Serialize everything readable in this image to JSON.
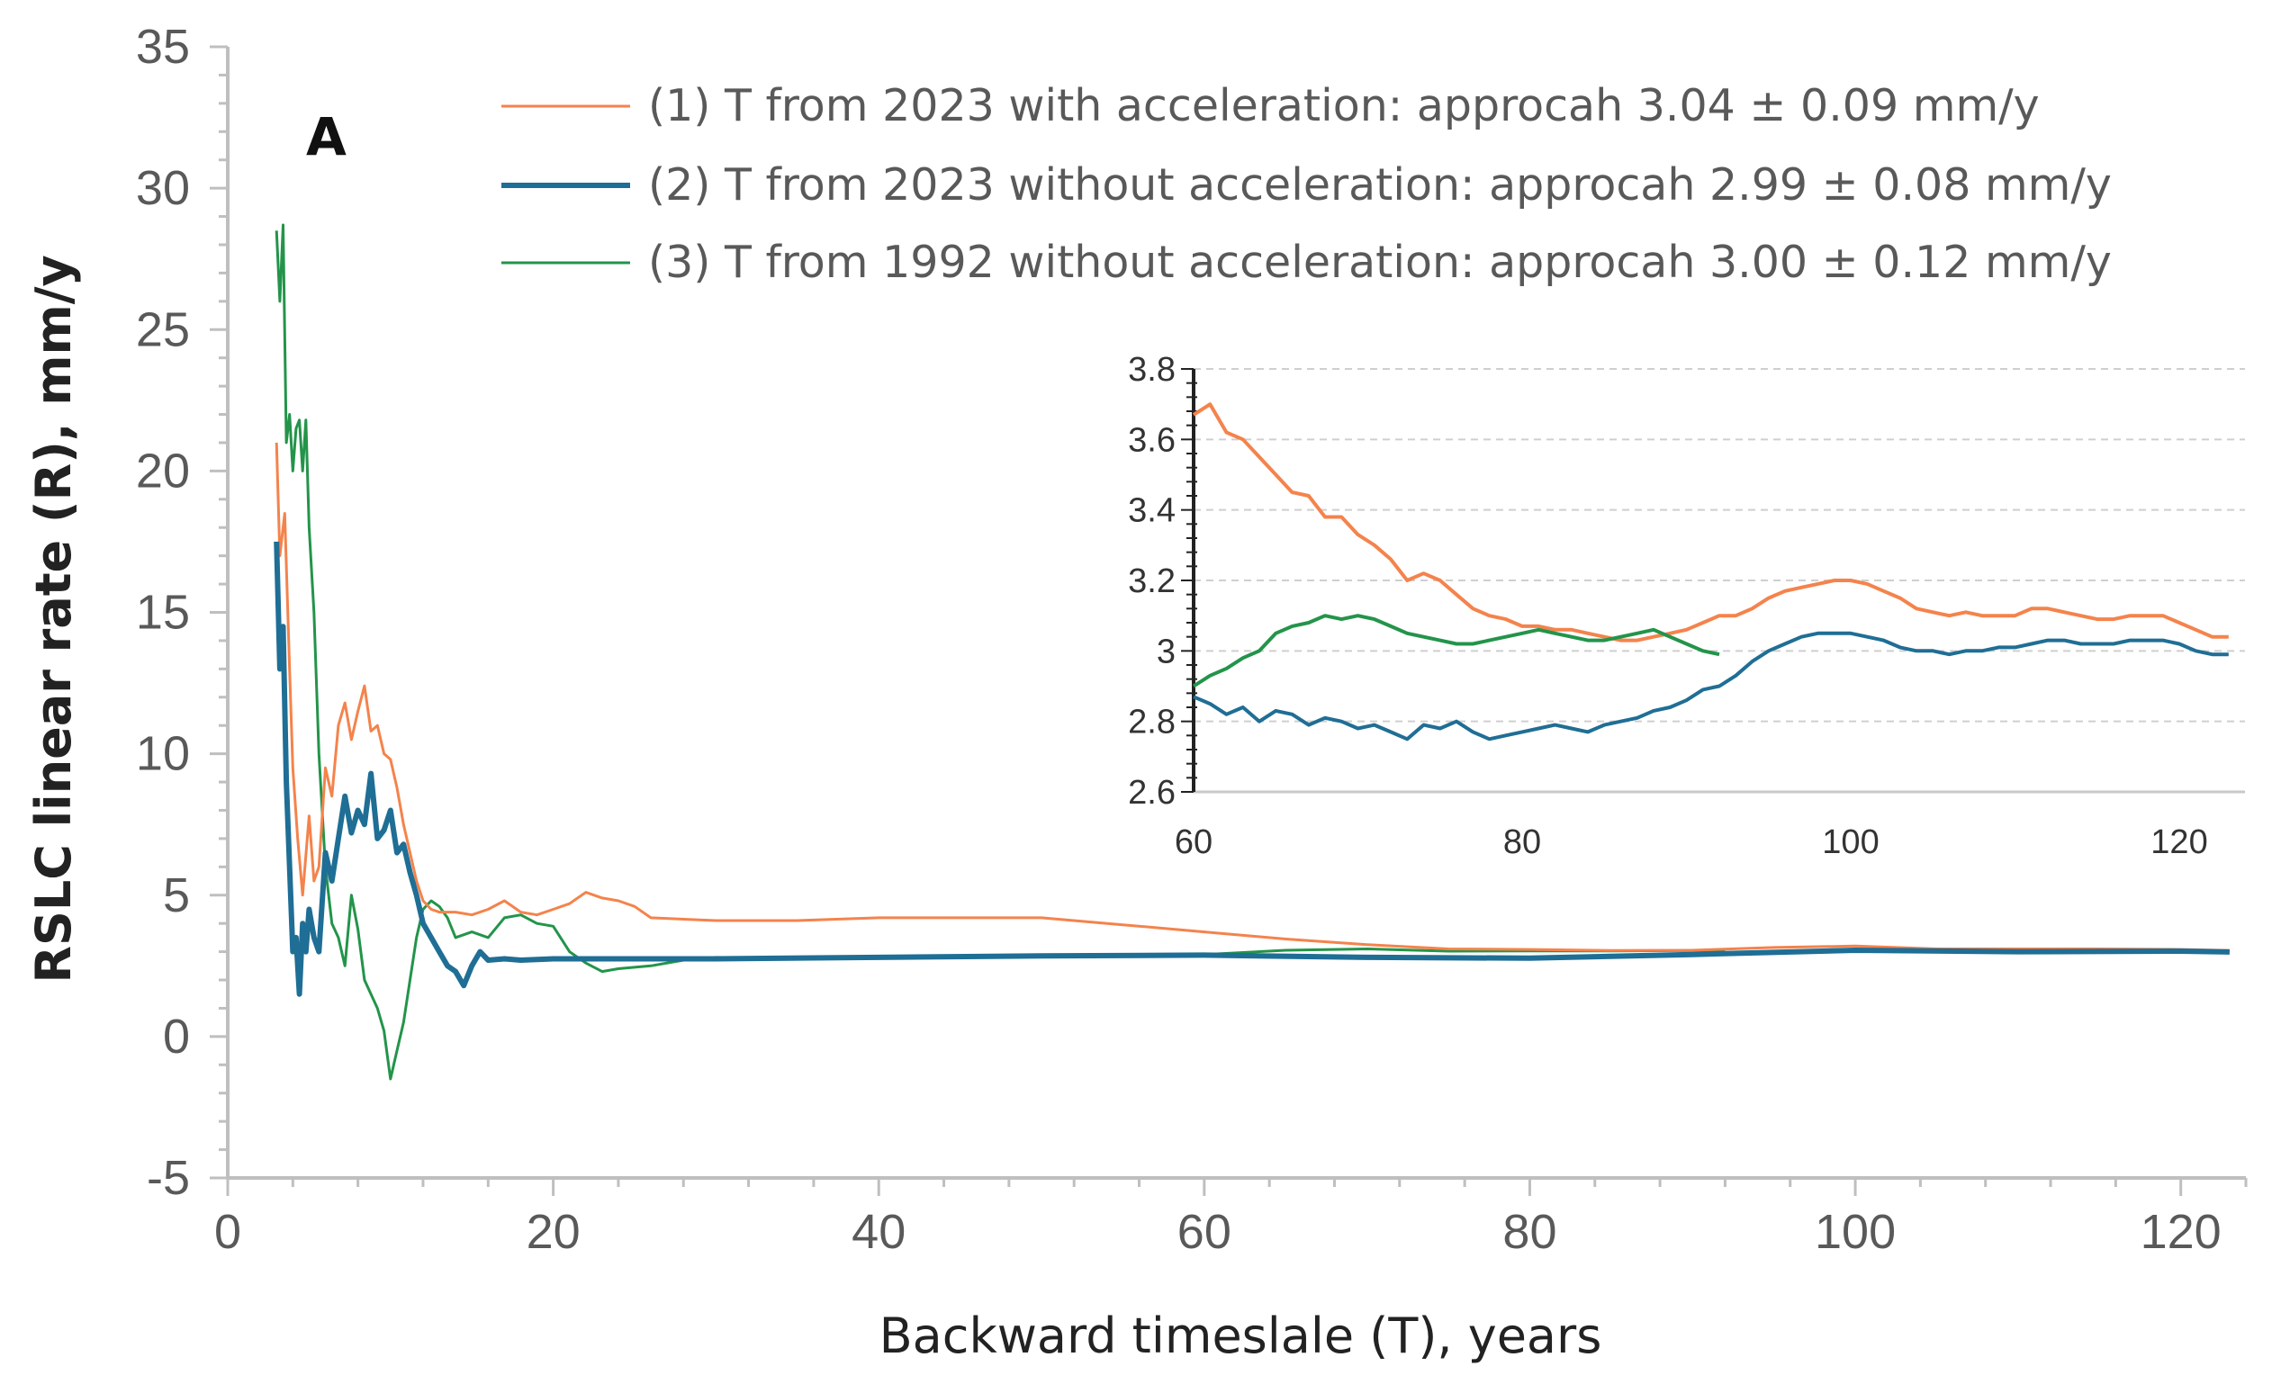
{
  "chart_data": [
    {
      "type": "line",
      "panel_label": "A",
      "xlabel": "Backward timeslale (T), years",
      "ylabel": "RSLC linear rate (R), mm/y",
      "xlim": [
        0,
        124
      ],
      "ylim": [
        -5,
        35
      ],
      "xticks": [
        0,
        20,
        40,
        60,
        80,
        100,
        120
      ],
      "yticks": [
        -5,
        0,
        5,
        10,
        15,
        20,
        25,
        30,
        35
      ],
      "grid": false,
      "legend_position": "top-right",
      "series": [
        {
          "name": "(1) T from 2023 with acceleration: approcah 3.04 ± 0.09 mm/y",
          "color": "#F4834C",
          "x": [
            3.0,
            3.2,
            3.5,
            3.8,
            4.0,
            4.3,
            4.6,
            5.0,
            5.3,
            5.6,
            6.0,
            6.4,
            6.8,
            7.2,
            7.6,
            8.0,
            8.4,
            8.8,
            9.2,
            9.6,
            10.0,
            10.4,
            10.8,
            11.2,
            11.6,
            12.0,
            12.5,
            13.0,
            13.5,
            14.0,
            15.0,
            16.0,
            17.0,
            18.0,
            19.0,
            20.0,
            21.0,
            22.0,
            23.0,
            24.0,
            25.0,
            26.0,
            30.0,
            35.0,
            40.0,
            45.0,
            50.0,
            55.0,
            60.0,
            65.0,
            70.0,
            75.0,
            80.0,
            85.0,
            90.0,
            95.0,
            100.0,
            105.0,
            110.0,
            115.0,
            120.0,
            123.0
          ],
          "values": [
            21.0,
            17.0,
            18.5,
            13.0,
            9.5,
            7.0,
            5.0,
            7.8,
            5.5,
            6.0,
            9.5,
            8.5,
            11.0,
            11.8,
            10.5,
            11.5,
            12.4,
            10.8,
            11.0,
            10.0,
            9.8,
            8.8,
            7.5,
            6.5,
            5.5,
            4.8,
            4.5,
            4.4,
            4.4,
            4.4,
            4.3,
            4.5,
            4.8,
            4.4,
            4.3,
            4.5,
            4.7,
            5.1,
            4.9,
            4.8,
            4.6,
            4.2,
            4.1,
            4.1,
            4.2,
            4.2,
            4.2,
            3.95,
            3.7,
            3.45,
            3.25,
            3.1,
            3.08,
            3.04,
            3.05,
            3.15,
            3.2,
            3.1,
            3.1,
            3.1,
            3.08,
            3.04
          ]
        },
        {
          "name": "(2) T from 2023 without acceleration: approcah 2.99 ± 0.08 mm/y",
          "color": "#1F6E95",
          "x": [
            3.0,
            3.2,
            3.4,
            3.6,
            3.8,
            4.0,
            4.2,
            4.4,
            4.6,
            4.8,
            5.0,
            5.3,
            5.6,
            6.0,
            6.4,
            6.8,
            7.2,
            7.6,
            8.0,
            8.4,
            8.8,
            9.2,
            9.6,
            10.0,
            10.4,
            10.8,
            11.2,
            11.6,
            12.0,
            12.5,
            13.0,
            13.5,
            14.0,
            14.5,
            15.0,
            15.5,
            16.0,
            17.0,
            18.0,
            20.0,
            25.0,
            30.0,
            40.0,
            50.0,
            60.0,
            70.0,
            80.0,
            90.0,
            100.0,
            110.0,
            120.0,
            123.0
          ],
          "values": [
            17.5,
            13.0,
            14.5,
            9.0,
            6.0,
            3.0,
            3.5,
            1.5,
            4.0,
            3.0,
            4.5,
            3.5,
            3.0,
            6.5,
            5.5,
            7.0,
            8.5,
            7.2,
            8.0,
            7.5,
            9.3,
            7.0,
            7.3,
            8.0,
            6.5,
            6.8,
            5.8,
            5.0,
            4.0,
            3.5,
            3.0,
            2.5,
            2.3,
            1.8,
            2.5,
            3.0,
            2.7,
            2.75,
            2.7,
            2.75,
            2.75,
            2.75,
            2.8,
            2.85,
            2.88,
            2.8,
            2.77,
            2.9,
            3.05,
            3.0,
            3.02,
            2.99
          ]
        },
        {
          "name": "(3) T from 1992 without acceleration: approcah 3.00 ± 0.12 mm/y",
          "color": "#23944A",
          "x": [
            3.0,
            3.2,
            3.4,
            3.6,
            3.8,
            4.0,
            4.2,
            4.4,
            4.6,
            4.8,
            5.0,
            5.3,
            5.6,
            6.0,
            6.4,
            6.8,
            7.2,
            7.6,
            8.0,
            8.4,
            8.8,
            9.2,
            9.6,
            10.0,
            10.4,
            10.8,
            11.2,
            11.6,
            12.0,
            12.5,
            13.0,
            13.5,
            14.0,
            15.0,
            16.0,
            17.0,
            18.0,
            19.0,
            20.0,
            21.0,
            22.0,
            23.0,
            24.0,
            26.0,
            28.0,
            30.0,
            35.0,
            40.0,
            45.0,
            50.0,
            55.0,
            60.0,
            65.0,
            70.0,
            75.0,
            80.0,
            85.0,
            90.0,
            92.0
          ],
          "values": [
            28.5,
            26.0,
            28.7,
            21.0,
            22.0,
            20.0,
            21.5,
            21.8,
            20.0,
            21.8,
            18.0,
            15.0,
            10.0,
            6.0,
            4.0,
            3.5,
            2.5,
            5.0,
            3.8,
            2.0,
            1.5,
            1.0,
            0.2,
            -1.5,
            -0.5,
            0.5,
            2.0,
            3.5,
            4.5,
            4.8,
            4.6,
            4.2,
            3.5,
            3.7,
            3.5,
            4.2,
            4.3,
            4.0,
            3.9,
            3.0,
            2.6,
            2.3,
            2.4,
            2.5,
            2.7,
            2.8,
            2.75,
            2.8,
            2.8,
            2.85,
            2.9,
            2.9,
            3.05,
            3.1,
            3.02,
            3.03,
            3.03,
            3.04,
            3.0
          ]
        }
      ]
    },
    {
      "type": "line",
      "role": "inset",
      "xlim": [
        60,
        124
      ],
      "ylim": [
        2.6,
        3.8
      ],
      "xticks": [
        60,
        80,
        100,
        120
      ],
      "yticks": [
        2.6,
        2.8,
        3,
        3.2,
        3.4,
        3.6,
        3.8
      ],
      "grid": true,
      "series": [
        {
          "name": "(1)",
          "color": "#F4834C",
          "x": [
            60,
            61,
            62,
            63,
            64,
            65,
            66,
            67,
            68,
            69,
            70,
            71,
            72,
            73,
            74,
            75,
            76,
            77,
            78,
            79,
            80,
            81,
            82,
            83,
            84,
            85,
            86,
            87,
            88,
            89,
            90,
            91,
            92,
            93,
            94,
            95,
            96,
            97,
            98,
            99,
            100,
            101,
            102,
            103,
            104,
            105,
            106,
            107,
            108,
            109,
            110,
            111,
            112,
            113,
            114,
            115,
            116,
            117,
            118,
            119,
            120,
            121,
            122,
            123
          ],
          "values": [
            3.67,
            3.7,
            3.62,
            3.6,
            3.55,
            3.5,
            3.45,
            3.44,
            3.38,
            3.38,
            3.33,
            3.3,
            3.26,
            3.2,
            3.22,
            3.2,
            3.16,
            3.12,
            3.1,
            3.09,
            3.07,
            3.07,
            3.06,
            3.06,
            3.05,
            3.04,
            3.03,
            3.03,
            3.04,
            3.05,
            3.06,
            3.08,
            3.1,
            3.1,
            3.12,
            3.15,
            3.17,
            3.18,
            3.19,
            3.2,
            3.2,
            3.19,
            3.17,
            3.15,
            3.12,
            3.11,
            3.1,
            3.11,
            3.1,
            3.1,
            3.1,
            3.12,
            3.12,
            3.11,
            3.1,
            3.09,
            3.09,
            3.1,
            3.1,
            3.1,
            3.08,
            3.06,
            3.04,
            3.04
          ]
        },
        {
          "name": "(2)",
          "color": "#1F6E95",
          "x": [
            60,
            61,
            62,
            63,
            64,
            65,
            66,
            67,
            68,
            69,
            70,
            71,
            72,
            73,
            74,
            75,
            76,
            77,
            78,
            79,
            80,
            81,
            82,
            83,
            84,
            85,
            86,
            87,
            88,
            89,
            90,
            91,
            92,
            93,
            94,
            95,
            96,
            97,
            98,
            99,
            100,
            101,
            102,
            103,
            104,
            105,
            106,
            107,
            108,
            109,
            110,
            111,
            112,
            113,
            114,
            115,
            116,
            117,
            118,
            119,
            120,
            121,
            122,
            123
          ],
          "values": [
            2.87,
            2.85,
            2.82,
            2.84,
            2.8,
            2.83,
            2.82,
            2.79,
            2.81,
            2.8,
            2.78,
            2.79,
            2.77,
            2.75,
            2.79,
            2.78,
            2.8,
            2.77,
            2.75,
            2.76,
            2.77,
            2.78,
            2.79,
            2.78,
            2.77,
            2.79,
            2.8,
            2.81,
            2.83,
            2.84,
            2.86,
            2.89,
            2.9,
            2.93,
            2.97,
            3.0,
            3.02,
            3.04,
            3.05,
            3.05,
            3.05,
            3.04,
            3.03,
            3.01,
            3.0,
            3.0,
            2.99,
            3.0,
            3.0,
            3.01,
            3.01,
            3.02,
            3.03,
            3.03,
            3.02,
            3.02,
            3.02,
            3.03,
            3.03,
            3.03,
            3.02,
            3.0,
            2.99,
            2.99
          ]
        },
        {
          "name": "(3)",
          "color": "#23944A",
          "x": [
            60,
            61,
            62,
            63,
            64,
            65,
            66,
            67,
            68,
            69,
            70,
            71,
            72,
            73,
            74,
            75,
            76,
            77,
            78,
            79,
            80,
            81,
            82,
            83,
            84,
            85,
            86,
            87,
            88,
            89,
            90,
            91,
            92
          ],
          "values": [
            2.9,
            2.93,
            2.95,
            2.98,
            3.0,
            3.05,
            3.07,
            3.08,
            3.1,
            3.09,
            3.1,
            3.09,
            3.07,
            3.05,
            3.04,
            3.03,
            3.02,
            3.02,
            3.03,
            3.04,
            3.05,
            3.06,
            3.05,
            3.04,
            3.03,
            3.03,
            3.04,
            3.05,
            3.06,
            3.04,
            3.02,
            3.0,
            2.99
          ]
        }
      ]
    }
  ]
}
